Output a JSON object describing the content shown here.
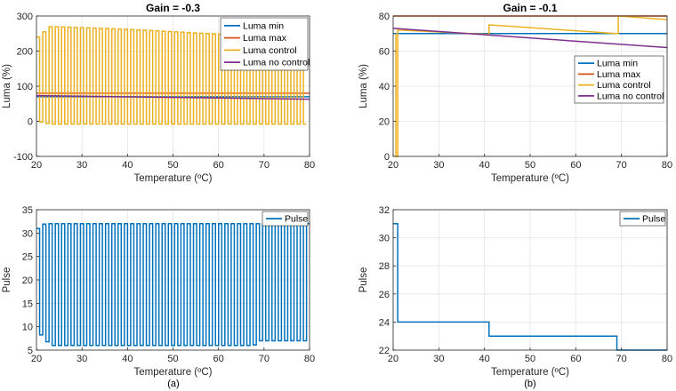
{
  "colors": {
    "luma_min": "#0072BD",
    "luma_max": "#D95319",
    "luma_control": "#EDB120",
    "luma_no_control": "#7E2F8E",
    "pulse": "#0072BD",
    "grid": "#E5E5E5",
    "axis": "#262626"
  },
  "chart_data": [
    {
      "id": "a-top",
      "type": "line",
      "title": "Gain = -0.3",
      "xlabel": "Temperature (ºC)",
      "ylabel": "Luma (%)",
      "xlim": [
        20,
        80
      ],
      "ylim": [
        -100,
        300
      ],
      "xticks": [
        20,
        30,
        40,
        50,
        60,
        70,
        80
      ],
      "yticks": [
        -100,
        0,
        100,
        200,
        300
      ],
      "legend": "top-right",
      "series": [
        {
          "name": "Luma min",
          "color_key": "luma_min",
          "x": [
            20,
            80
          ],
          "y": [
            70,
            70
          ]
        },
        {
          "name": "Luma max",
          "color_key": "luma_max",
          "x": [
            20,
            80
          ],
          "y": [
            80,
            80
          ]
        },
        {
          "name": "Luma control",
          "color_key": "luma_control",
          "pattern": "square_wave",
          "x_start": 20,
          "x_end": 79.3,
          "period": 1.38,
          "high": [
            [
              20,
              240
            ],
            [
              22.8,
              270
            ],
            [
              40,
              262
            ],
            [
              60,
              248
            ],
            [
              79.3,
              225
            ]
          ],
          "low": [
            [
              20,
              0
            ],
            [
              22.8,
              -8
            ],
            [
              80,
              -8
            ]
          ]
        },
        {
          "name": "Luma no control",
          "color_key": "luma_no_control",
          "x": [
            20,
            80
          ],
          "y": [
            73,
            63
          ]
        }
      ]
    },
    {
      "id": "b-top",
      "type": "line",
      "title": "Gain = -0.1",
      "xlabel": "Temperature (ºC)",
      "ylabel": "Luma (%)",
      "xlim": [
        20,
        80
      ],
      "ylim": [
        0,
        80
      ],
      "xticks": [
        20,
        30,
        40,
        50,
        60,
        70,
        80
      ],
      "yticks": [
        0,
        20,
        40,
        60,
        80
      ],
      "legend": "right",
      "series": [
        {
          "name": "Luma min",
          "color_key": "luma_min",
          "x": [
            20,
            80
          ],
          "y": [
            70,
            70
          ]
        },
        {
          "name": "Luma max",
          "color_key": "luma_max",
          "x": [
            20,
            80
          ],
          "y": [
            80,
            80
          ]
        },
        {
          "name": "Luma control",
          "color_key": "luma_control",
          "x": [
            20.6,
            20.6,
            21,
            21,
            41,
            41,
            68.8,
            68.8,
            69.3,
            69.3,
            80
          ],
          "y": [
            70,
            0,
            0,
            72,
            69.5,
            75,
            70,
            70,
            70,
            80,
            78
          ]
        },
        {
          "name": "Luma no control",
          "color_key": "luma_no_control",
          "x": [
            20,
            80
          ],
          "y": [
            73,
            62
          ]
        }
      ]
    },
    {
      "id": "a-bottom",
      "type": "line",
      "title": "",
      "xlabel": "Temperature (ºC)",
      "ylabel": "Pulse",
      "xlim": [
        20,
        80
      ],
      "ylim": [
        5,
        35
      ],
      "xticks": [
        20,
        30,
        40,
        50,
        60,
        70,
        80
      ],
      "yticks": [
        5,
        10,
        15,
        20,
        25,
        30,
        35
      ],
      "legend": "top-right",
      "series": [
        {
          "name": "Pulse",
          "color_key": "pulse",
          "pattern": "square_wave",
          "x_start": 20,
          "x_end": 80,
          "period": 1.38,
          "high": [
            [
              20,
              31
            ],
            [
              21.5,
              32
            ],
            [
              80,
              32
            ]
          ],
          "low": [
            [
              20,
              9
            ],
            [
              22.8,
              6
            ],
            [
              67.5,
              6
            ],
            [
              68.5,
              7
            ],
            [
              80,
              7
            ]
          ]
        }
      ]
    },
    {
      "id": "b-bottom",
      "type": "line",
      "title": "",
      "xlabel": "Temperature (ºC)",
      "ylabel": "Pulse",
      "xlim": [
        20,
        80
      ],
      "ylim": [
        22,
        32
      ],
      "xticks": [
        20,
        30,
        40,
        50,
        60,
        70,
        80
      ],
      "yticks": [
        22,
        24,
        26,
        28,
        30,
        32
      ],
      "legend": "top-right",
      "series": [
        {
          "name": "Pulse",
          "color_key": "pulse",
          "x": [
            20,
            21,
            21,
            41,
            41,
            69,
            69,
            80
          ],
          "y": [
            31,
            31,
            24,
            24,
            23,
            23,
            22,
            22
          ]
        }
      ]
    }
  ],
  "captions": {
    "a": "(a)",
    "b": "(b)"
  }
}
